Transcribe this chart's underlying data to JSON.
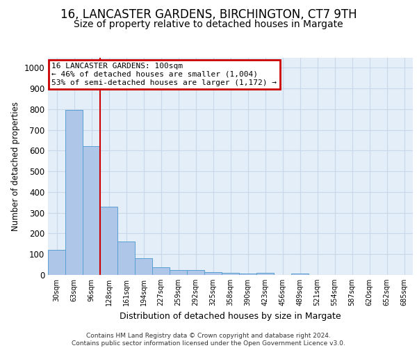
{
  "title": "16, LANCASTER GARDENS, BIRCHINGTON, CT7 9TH",
  "subtitle": "Size of property relative to detached houses in Margate",
  "xlabel": "Distribution of detached houses by size in Margate",
  "ylabel": "Number of detached properties",
  "footer_line1": "Contains HM Land Registry data © Crown copyright and database right 2024.",
  "footer_line2": "Contains public sector information licensed under the Open Government Licence v3.0.",
  "bin_labels": [
    "30sqm",
    "63sqm",
    "96sqm",
    "128sqm",
    "161sqm",
    "194sqm",
    "227sqm",
    "259sqm",
    "292sqm",
    "325sqm",
    "358sqm",
    "390sqm",
    "423sqm",
    "456sqm",
    "489sqm",
    "521sqm",
    "554sqm",
    "587sqm",
    "620sqm",
    "652sqm",
    "685sqm"
  ],
  "bar_values": [
    120,
    795,
    620,
    330,
    160,
    80,
    38,
    25,
    23,
    15,
    10,
    7,
    10,
    0,
    8,
    0,
    0,
    0,
    0,
    0,
    0
  ],
  "bar_color": "#aec6e8",
  "bar_edge_color": "#5a9fd4",
  "vline_x_index": 2,
  "vline_color": "#cc0000",
  "annotation_text": "16 LANCASTER GARDENS: 100sqm\n← 46% of detached houses are smaller (1,004)\n53% of semi-detached houses are larger (1,172) →",
  "annotation_box_edgecolor": "#cc0000",
  "annotation_bg": "#ffffff",
  "ylim": [
    0,
    1050
  ],
  "yticks": [
    0,
    100,
    200,
    300,
    400,
    500,
    600,
    700,
    800,
    900,
    1000
  ],
  "grid_color": "#c8d8e8",
  "bg_color": "#e4eef8",
  "title_fontsize": 12,
  "subtitle_fontsize": 10,
  "title_fontweight": "normal"
}
